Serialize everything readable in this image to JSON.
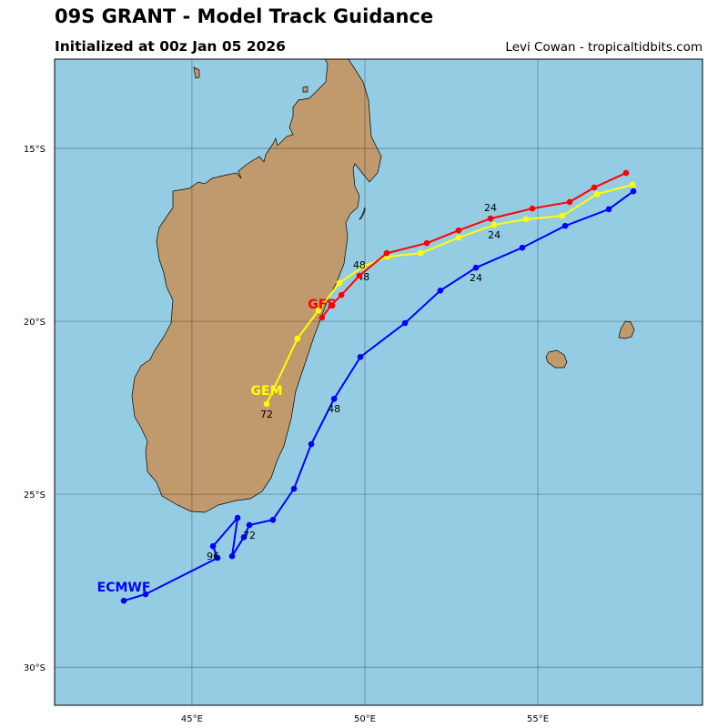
{
  "header": {
    "title": "09S GRANT - Model Track Guidance",
    "subtitle": "Initialized at 00z Jan 05 2026",
    "credit": "Levi Cowan - tropicaltidbits.com"
  },
  "map": {
    "extent": {
      "lon": [
        41.03,
        59.76
      ],
      "lat": [
        -31.1,
        -12.42
      ]
    },
    "ocean_color": "#94cde3",
    "land_color": "#c09a6c",
    "grid_lons": [
      45,
      50,
      55
    ],
    "grid_lats": [
      -15,
      -20,
      -25,
      -30
    ],
    "lon_labels": [
      "45°E",
      "50°E",
      "55°E"
    ],
    "lat_labels": [
      "15°S",
      "20°S",
      "25°S",
      "30°S"
    ]
  },
  "models": [
    {
      "name": "ECMWF",
      "color": "#0000ff",
      "points": [
        [
          57.76,
          -16.24
        ],
        [
          57.05,
          -16.76
        ],
        [
          55.79,
          -17.24
        ],
        [
          54.55,
          -17.87
        ],
        [
          53.21,
          -18.45
        ],
        [
          52.18,
          -19.11
        ],
        [
          51.16,
          -20.05
        ],
        [
          49.87,
          -21.03
        ],
        [
          49.11,
          -22.24
        ],
        [
          48.45,
          -23.55
        ],
        [
          47.95,
          -24.84
        ],
        [
          47.34,
          -25.74
        ],
        [
          46.66,
          -25.89
        ],
        [
          46.5,
          -26.24
        ],
        [
          46.16,
          -26.79
        ],
        [
          46.32,
          -25.68
        ],
        [
          45.61,
          -26.5
        ],
        [
          45.74,
          -26.84
        ],
        [
          43.66,
          -27.89
        ],
        [
          43.03,
          -28.08
        ]
      ],
      "hour_labels": [
        {
          "index": 4,
          "text": "24"
        },
        {
          "index": 8,
          "text": "48"
        },
        {
          "index": 12,
          "text": "72"
        },
        {
          "index": 16,
          "text": "96"
        }
      ]
    },
    {
      "name": "GFS",
      "color": "#ff0000",
      "points": [
        [
          57.55,
          -15.71
        ],
        [
          56.63,
          -16.13
        ],
        [
          55.92,
          -16.55
        ],
        [
          54.84,
          -16.74
        ],
        [
          53.63,
          -17.03
        ],
        [
          52.71,
          -17.37
        ],
        [
          51.79,
          -17.74
        ],
        [
          50.63,
          -18.03
        ],
        [
          49.84,
          -18.68
        ],
        [
          49.32,
          -19.24
        ],
        [
          49.03,
          -19.53
        ],
        [
          48.76,
          -19.89
        ]
      ],
      "hour_labels": [
        {
          "index": 4,
          "text": "24"
        },
        {
          "index": 8,
          "text": "48"
        }
      ]
    },
    {
      "name": "GEM",
      "color": "#ffff00",
      "points": [
        [
          57.74,
          -16.05
        ],
        [
          56.71,
          -16.32
        ],
        [
          55.71,
          -16.95
        ],
        [
          54.66,
          -17.05
        ],
        [
          53.74,
          -17.21
        ],
        [
          52.71,
          -17.58
        ],
        [
          51.61,
          -18.03
        ],
        [
          50.66,
          -18.13
        ],
        [
          49.95,
          -18.42
        ],
        [
          49.26,
          -18.89
        ],
        [
          48.66,
          -19.68
        ],
        [
          48.05,
          -20.5
        ],
        [
          47.16,
          -22.39
        ]
      ],
      "hour_labels": [
        {
          "index": 4,
          "text": "24"
        },
        {
          "index": 8,
          "text": "48"
        },
        {
          "index": 12,
          "text": "72"
        }
      ]
    }
  ]
}
